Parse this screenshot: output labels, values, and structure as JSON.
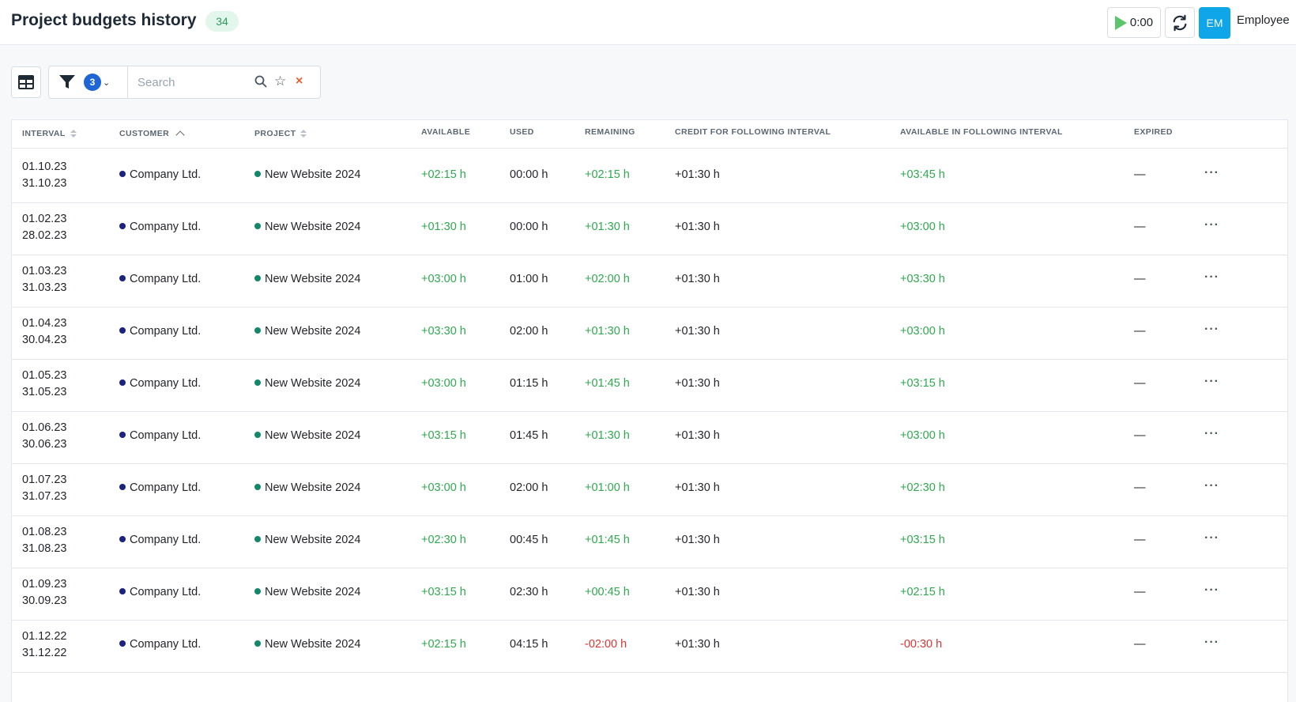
{
  "header": {
    "title": "Project budgets history",
    "count": "34",
    "timer": "0:00",
    "user_initials": "EM",
    "user_name": "Employee"
  },
  "toolbar": {
    "filter_count": "3",
    "search_placeholder": "Search",
    "search_value": ""
  },
  "table": {
    "columns": {
      "interval": "INTERVAL",
      "customer": "CUSTOMER",
      "project": "PROJECT",
      "available": "AVAILABLE",
      "used": "USED",
      "remaining": "REMAINING",
      "credit": "CREDIT FOR FOLLOWING INTERVAL",
      "available_following": "AVAILABLE IN FOLLOWING INTERVAL",
      "expired": "EXPIRED"
    },
    "rows": [
      {
        "start": "01.10.23",
        "end": "31.10.23",
        "customer": "Company Ltd.",
        "project": "New Website 2024",
        "available": "+02:15 h",
        "used": "00:00 h",
        "remaining": "+02:15 h",
        "credit": "+01:30 h",
        "available_following": "+03:45 h",
        "expired": "—"
      },
      {
        "start": "01.02.23",
        "end": "28.02.23",
        "customer": "Company Ltd.",
        "project": "New Website 2024",
        "available": "+01:30 h",
        "used": "00:00 h",
        "remaining": "+01:30 h",
        "credit": "+01:30 h",
        "available_following": "+03:00 h",
        "expired": "—"
      },
      {
        "start": "01.03.23",
        "end": "31.03.23",
        "customer": "Company Ltd.",
        "project": "New Website 2024",
        "available": "+03:00 h",
        "used": "01:00 h",
        "remaining": "+02:00 h",
        "credit": "+01:30 h",
        "available_following": "+03:30 h",
        "expired": "—"
      },
      {
        "start": "01.04.23",
        "end": "30.04.23",
        "customer": "Company Ltd.",
        "project": "New Website 2024",
        "available": "+03:30 h",
        "used": "02:00 h",
        "remaining": "+01:30 h",
        "credit": "+01:30 h",
        "available_following": "+03:00 h",
        "expired": "—"
      },
      {
        "start": "01.05.23",
        "end": "31.05.23",
        "customer": "Company Ltd.",
        "project": "New Website 2024",
        "available": "+03:00 h",
        "used": "01:15 h",
        "remaining": "+01:45 h",
        "credit": "+01:30 h",
        "available_following": "+03:15 h",
        "expired": "—"
      },
      {
        "start": "01.06.23",
        "end": "30.06.23",
        "customer": "Company Ltd.",
        "project": "New Website 2024",
        "available": "+03:15 h",
        "used": "01:45 h",
        "remaining": "+01:30 h",
        "credit": "+01:30 h",
        "available_following": "+03:00 h",
        "expired": "—"
      },
      {
        "start": "01.07.23",
        "end": "31.07.23",
        "customer": "Company Ltd.",
        "project": "New Website 2024",
        "available": "+03:00 h",
        "used": "02:00 h",
        "remaining": "+01:00 h",
        "credit": "+01:30 h",
        "available_following": "+02:30 h",
        "expired": "—"
      },
      {
        "start": "01.08.23",
        "end": "31.08.23",
        "customer": "Company Ltd.",
        "project": "New Website 2024",
        "available": "+02:30 h",
        "used": "00:45 h",
        "remaining": "+01:45 h",
        "credit": "+01:30 h",
        "available_following": "+03:15 h",
        "expired": "—"
      },
      {
        "start": "01.09.23",
        "end": "30.09.23",
        "customer": "Company Ltd.",
        "project": "New Website 2024",
        "available": "+03:15 h",
        "used": "02:30 h",
        "remaining": "+00:45 h",
        "credit": "+01:30 h",
        "available_following": "+02:15 h",
        "expired": "—"
      },
      {
        "start": "01.12.22",
        "end": "31.12.22",
        "customer": "Company Ltd.",
        "project": "New Website 2024",
        "available": "+02:15 h",
        "used": "04:15 h",
        "remaining": "-02:00 h",
        "credit": "+01:30 h",
        "available_following": "-00:30 h",
        "expired": "—"
      }
    ]
  },
  "colors": {
    "positive": "#2fa84f",
    "negative": "#d93636",
    "accent": "#0ea5e9",
    "filter_badge": "#1e66d4"
  },
  "icons": {
    "timer": "play-icon",
    "sync": "sync-icon",
    "view": "table-view-icon",
    "filter": "filter-icon",
    "search": "search-icon",
    "favorite": "star-icon",
    "clear": "close-icon",
    "row_actions": "more-icon"
  }
}
